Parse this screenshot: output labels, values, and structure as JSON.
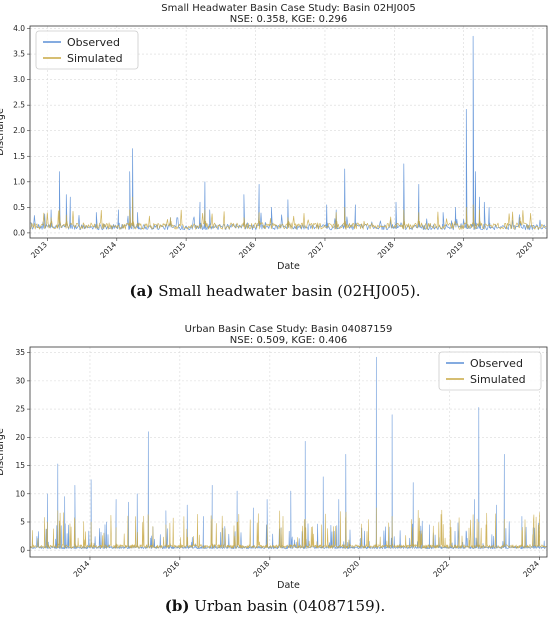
{
  "chart_data": [
    {
      "type": "line",
      "title": "Small Headwater Basin Case Study: Basin 02HJ005",
      "subtitle": "NSE: 0.358, KGE: 0.296",
      "xlabel": "Date",
      "ylabel": "Discharge",
      "x_ticks": [
        "2013",
        "2014",
        "2015",
        "2016",
        "2017",
        "2018",
        "2019",
        "2020"
      ],
      "x_range": [
        "2012-10-01",
        "2020-03-15"
      ],
      "y_ticks": [
        "0.0",
        "0.5",
        "1.0",
        "1.5",
        "2.0",
        "2.5",
        "3.0",
        "3.5",
        "4.0"
      ],
      "ylim": [
        -0.1,
        4.05
      ],
      "grid": true,
      "legend_position": "top-left",
      "series": [
        {
          "name": "Observed",
          "color": "#5b8fd6",
          "baseline": 0.12,
          "peaks": [
            {
              "date": "2013-01-20",
              "value": 0.45
            },
            {
              "date": "2013-03-05",
              "value": 1.2
            },
            {
              "date": "2013-04-10",
              "value": 0.75
            },
            {
              "date": "2013-05-01",
              "value": 0.7
            },
            {
              "date": "2013-09-15",
              "value": 0.4
            },
            {
              "date": "2014-01-10",
              "value": 0.45
            },
            {
              "date": "2014-03-10",
              "value": 1.2
            },
            {
              "date": "2014-03-25",
              "value": 1.65
            },
            {
              "date": "2014-04-20",
              "value": 0.4
            },
            {
              "date": "2014-10-10",
              "value": 0.3
            },
            {
              "date": "2015-03-15",
              "value": 0.6
            },
            {
              "date": "2015-04-10",
              "value": 1.0
            },
            {
              "date": "2015-05-05",
              "value": 0.45
            },
            {
              "date": "2015-11-01",
              "value": 0.75
            },
            {
              "date": "2016-01-20",
              "value": 0.95
            },
            {
              "date": "2016-03-25",
              "value": 0.5
            },
            {
              "date": "2016-06-20",
              "value": 0.65
            },
            {
              "date": "2017-01-10",
              "value": 0.55
            },
            {
              "date": "2017-03-01",
              "value": 0.45
            },
            {
              "date": "2017-04-15",
              "value": 1.25
            },
            {
              "date": "2017-06-10",
              "value": 0.55
            },
            {
              "date": "2018-01-10",
              "value": 0.6
            },
            {
              "date": "2018-02-20",
              "value": 1.35
            },
            {
              "date": "2018-05-10",
              "value": 0.95
            },
            {
              "date": "2018-09-15",
              "value": 0.4
            },
            {
              "date": "2018-11-20",
              "value": 0.5
            },
            {
              "date": "2019-01-15",
              "value": 2.42
            },
            {
              "date": "2019-02-20",
              "value": 3.85
            },
            {
              "date": "2019-03-05",
              "value": 1.2
            },
            {
              "date": "2019-03-25",
              "value": 0.7
            },
            {
              "date": "2019-04-20",
              "value": 0.6
            },
            {
              "date": "2019-05-15",
              "value": 0.5
            },
            {
              "date": "2019-10-25",
              "value": 0.3
            }
          ]
        },
        {
          "name": "Simulated",
          "color": "#c8a844",
          "baseline": 0.14,
          "peaks": [
            {
              "date": "2013-01-20",
              "value": 0.3
            },
            {
              "date": "2013-03-05",
              "value": 0.45
            },
            {
              "date": "2013-04-10",
              "value": 0.35
            },
            {
              "date": "2014-03-10",
              "value": 0.45
            },
            {
              "date": "2014-03-25",
              "value": 0.7
            },
            {
              "date": "2014-10-10",
              "value": 0.3
            },
            {
              "date": "2015-04-10",
              "value": 0.45
            },
            {
              "date": "2015-11-01",
              "value": 0.3
            },
            {
              "date": "2016-01-20",
              "value": 0.4
            },
            {
              "date": "2016-06-20",
              "value": 0.3
            },
            {
              "date": "2017-03-01",
              "value": 0.4
            },
            {
              "date": "2017-04-15",
              "value": 0.5
            },
            {
              "date": "2018-02-20",
              "value": 0.45
            },
            {
              "date": "2018-05-10",
              "value": 0.4
            },
            {
              "date": "2019-01-15",
              "value": 0.5
            },
            {
              "date": "2019-02-20",
              "value": 0.55
            },
            {
              "date": "2019-03-25",
              "value": 0.45
            },
            {
              "date": "2019-10-25",
              "value": 0.3
            }
          ]
        }
      ]
    },
    {
      "type": "line",
      "title": "Urban Basin Case Study: Basin 04087159",
      "subtitle": "NSE: 0.509, KGE: 0.406",
      "xlabel": "Date",
      "ylabel": "Discharge",
      "x_ticks": [
        "2014",
        "2016",
        "2018",
        "2020",
        "2022",
        "2024"
      ],
      "x_range": [
        "2012-09-01",
        "2024-03-01"
      ],
      "y_ticks": [
        "0",
        "5",
        "10",
        "15",
        "20",
        "25",
        "30",
        "35"
      ],
      "ylim": [
        -1.2,
        36
      ],
      "grid": true,
      "legend_position": "top-right",
      "series": [
        {
          "name": "Observed",
          "color": "#5b8fd6",
          "baseline": 0.5,
          "peaks": [
            {
              "date": "2013-01-20",
              "value": 10
            },
            {
              "date": "2013-04-15",
              "value": 15.3
            },
            {
              "date": "2013-06-10",
              "value": 9.5
            },
            {
              "date": "2013-09-01",
              "value": 11.5
            },
            {
              "date": "2014-01-10",
              "value": 12.5
            },
            {
              "date": "2014-05-15",
              "value": 5
            },
            {
              "date": "2014-08-01",
              "value": 9
            },
            {
              "date": "2014-11-10",
              "value": 8.5
            },
            {
              "date": "2015-01-20",
              "value": 10
            },
            {
              "date": "2015-04-20",
              "value": 21
            },
            {
              "date": "2015-09-10",
              "value": 7
            },
            {
              "date": "2016-03-01",
              "value": 8
            },
            {
              "date": "2016-07-10",
              "value": 6
            },
            {
              "date": "2016-09-20",
              "value": 11.5
            },
            {
              "date": "2017-04-10",
              "value": 10.5
            },
            {
              "date": "2017-08-20",
              "value": 7.5
            },
            {
              "date": "2017-12-10",
              "value": 9
            },
            {
              "date": "2018-06-20",
              "value": 10.5
            },
            {
              "date": "2018-10-15",
              "value": 19.3
            },
            {
              "date": "2019-03-10",
              "value": 13
            },
            {
              "date": "2019-07-15",
              "value": 9
            },
            {
              "date": "2019-09-10",
              "value": 17
            },
            {
              "date": "2020-05-15",
              "value": 34.2
            },
            {
              "date": "2020-09-20",
              "value": 24
            },
            {
              "date": "2021-03-10",
              "value": 12
            },
            {
              "date": "2021-07-20",
              "value": 4.5
            },
            {
              "date": "2022-03-10",
              "value": 3.5
            },
            {
              "date": "2022-07-20",
              "value": 9
            },
            {
              "date": "2022-08-25",
              "value": 25.3
            },
            {
              "date": "2023-01-15",
              "value": 8
            },
            {
              "date": "2023-03-20",
              "value": 17
            },
            {
              "date": "2023-08-10",
              "value": 6
            },
            {
              "date": "2023-11-10",
              "value": 4
            }
          ]
        },
        {
          "name": "Simulated",
          "color": "#c8a844",
          "baseline": 0.7,
          "peaks": [
            {
              "date": "2013-01-20",
              "value": 5
            },
            {
              "date": "2013-04-15",
              "value": 7
            },
            {
              "date": "2013-09-01",
              "value": 5.5
            },
            {
              "date": "2014-01-10",
              "value": 5
            },
            {
              "date": "2014-08-01",
              "value": 4
            },
            {
              "date": "2015-04-20",
              "value": 6
            },
            {
              "date": "2015-09-10",
              "value": 4.5
            },
            {
              "date": "2016-09-20",
              "value": 5.5
            },
            {
              "date": "2017-04-10",
              "value": 5
            },
            {
              "date": "2017-12-10",
              "value": 4.5
            },
            {
              "date": "2018-10-15",
              "value": 5.5
            },
            {
              "date": "2019-09-10",
              "value": 6
            },
            {
              "date": "2020-05-15",
              "value": 7.5
            },
            {
              "date": "2020-09-20",
              "value": 6
            },
            {
              "date": "2021-03-10",
              "value": 4
            },
            {
              "date": "2022-08-25",
              "value": 5
            },
            {
              "date": "2023-03-20",
              "value": 5.5
            },
            {
              "date": "2023-08-10",
              "value": 3.5
            }
          ]
        }
      ]
    }
  ],
  "captions": [
    {
      "label": "(a)",
      "text": " Small headwater basin (02HJ005)."
    },
    {
      "label": "(b)",
      "text": " Urban basin (04087159)."
    }
  ]
}
